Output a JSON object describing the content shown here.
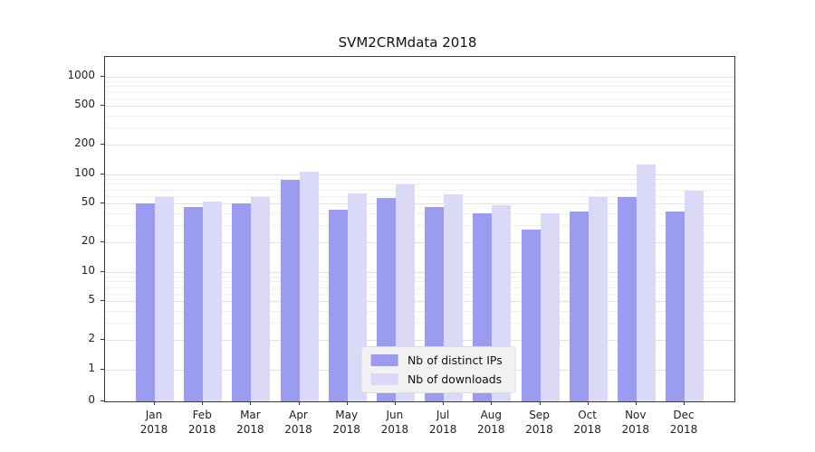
{
  "title": "SVM2CRMdata 2018",
  "chart_data": {
    "type": "bar",
    "title": "SVM2CRMdata 2018",
    "categories": [
      "Jan",
      "Feb",
      "Mar",
      "Apr",
      "May",
      "Jun",
      "Jul",
      "Aug",
      "Sep",
      "Oct",
      "Nov",
      "Dec"
    ],
    "year_label": "2018",
    "series": [
      {
        "name": "Nb of distinct IPs",
        "color": "#9b9bef",
        "values": [
          50,
          46,
          50,
          88,
          43,
          57,
          46,
          40,
          27,
          42,
          58,
          42
        ]
      },
      {
        "name": "Nb of downloads",
        "color": "#dadaf8",
        "values": [
          58,
          52,
          58,
          105,
          63,
          78,
          62,
          48,
          40,
          58,
          125,
          68
        ]
      }
    ],
    "yscale": "symlog",
    "yticks": [
      0,
      1,
      2,
      5,
      10,
      20,
      50,
      100,
      200,
      500,
      1000
    ],
    "ylim": [
      0,
      1600
    ],
    "xlabel": "",
    "ylabel": "",
    "grid": true,
    "legend_position": "lower center"
  }
}
